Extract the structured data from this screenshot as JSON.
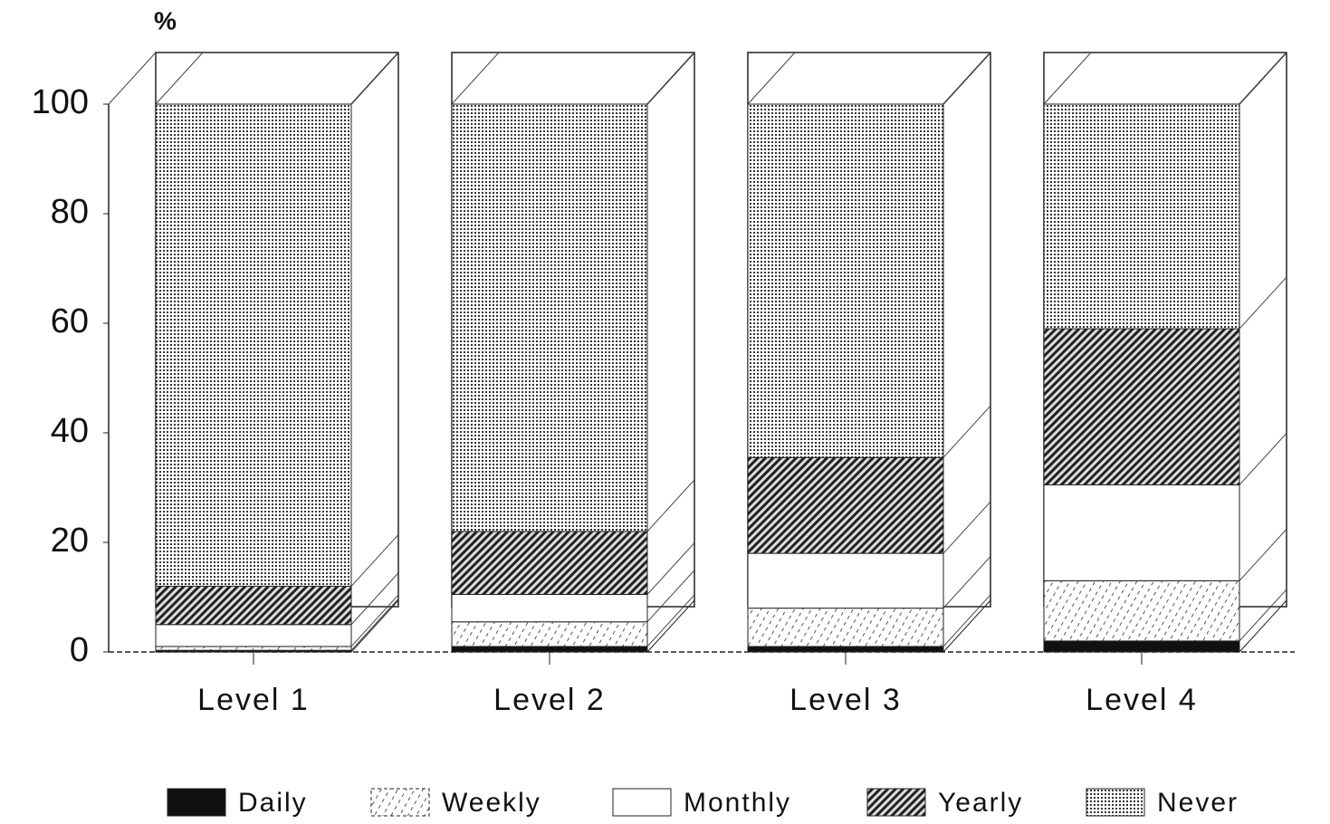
{
  "chart_data": {
    "type": "stacked_bar",
    "y_label": "%",
    "categories": [
      "Level 1",
      "Level 2",
      "Level 3",
      "Level 4"
    ],
    "series": [
      {
        "name": "Daily",
        "color": "#111111",
        "pattern": "solid",
        "values": [
          0.3,
          1,
          1,
          2
        ]
      },
      {
        "name": "Weekly",
        "color": "#ffffff",
        "pattern": "dashed-hatch",
        "values": [
          0.7,
          4.5,
          7,
          11
        ]
      },
      {
        "name": "Monthly",
        "color": "#ffffff",
        "pattern": "none",
        "values": [
          4,
          5,
          10,
          17.5
        ]
      },
      {
        "name": "Yearly",
        "color": "#555555",
        "pattern": "hatch",
        "values": [
          7,
          11.5,
          17.5,
          28.5
        ]
      },
      {
        "name": "Never",
        "color": "#777777",
        "pattern": "dots",
        "values": [
          88,
          78,
          64.5,
          41
        ]
      }
    ],
    "ylim": [
      0,
      100
    ],
    "yticks": [
      0,
      20,
      40,
      60,
      80,
      100
    ],
    "legend": "bottom"
  }
}
